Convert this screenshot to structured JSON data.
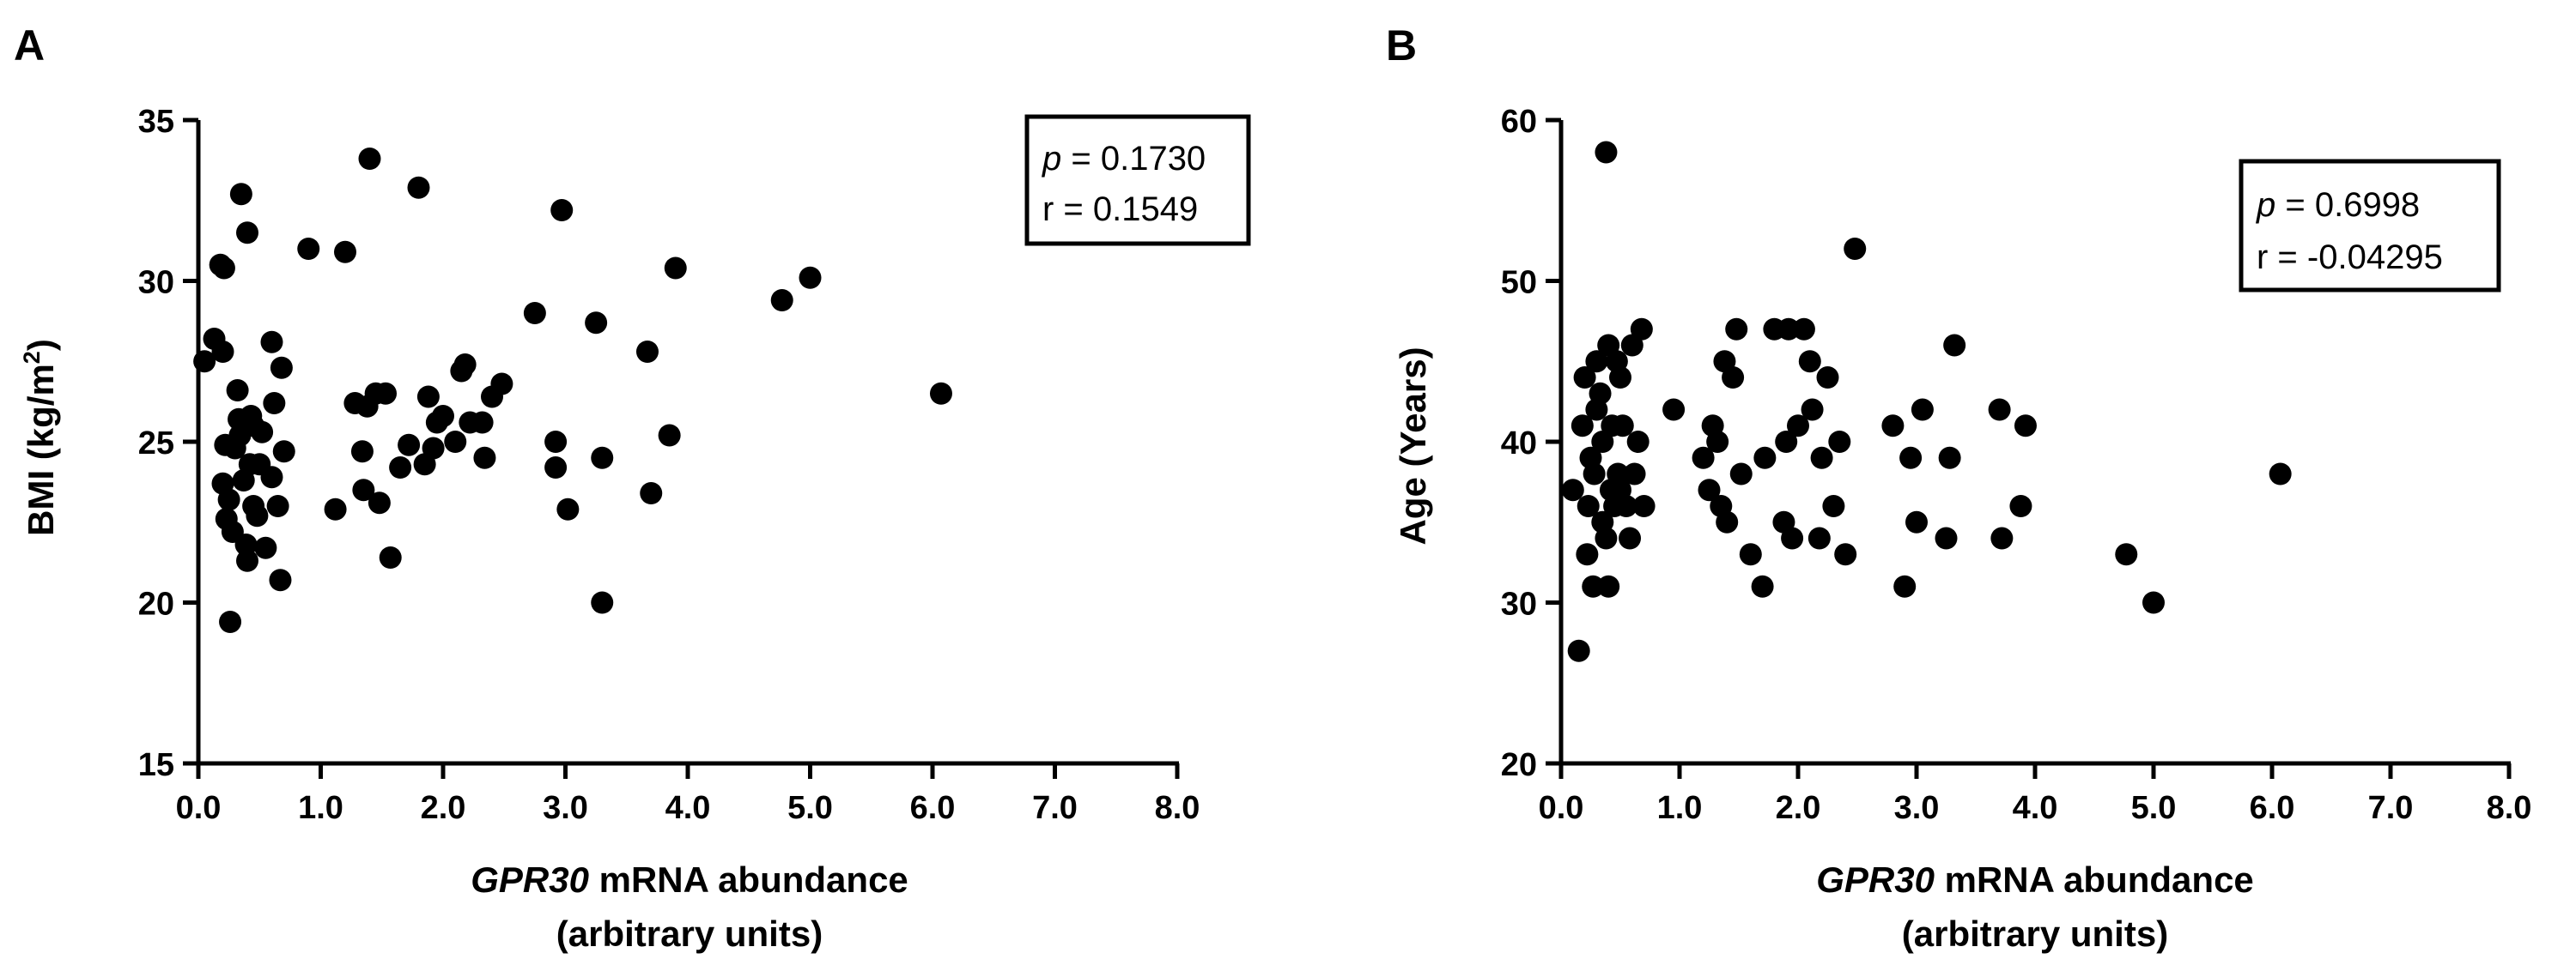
{
  "chart_data": [
    {
      "type": "scatter",
      "panel_label": "A",
      "ylabel": "BMI (kg/m",
      "ylabel_sup": "2",
      "ylabel_close": ")",
      "xlabel_gene": "GPR30",
      "xlabel_rest": " mRNA abundance",
      "xlabel_line2": "(arbitrary units)",
      "xlim": [
        0,
        8
      ],
      "ylim": [
        15,
        35
      ],
      "xticks": [
        0,
        1,
        2,
        3,
        4,
        5,
        6,
        7,
        8
      ],
      "xtick_labels": [
        "0.0",
        "1.0",
        "2.0",
        "3.0",
        "4.0",
        "5.0",
        "6.0",
        "7.0",
        "8.0"
      ],
      "yticks": [
        15,
        20,
        25,
        30,
        35
      ],
      "ytick_labels": [
        "15",
        "20",
        "25",
        "30",
        "35"
      ],
      "stats": {
        "p_symbol": "p",
        "p_value": " = 0.1730",
        "r_text": "r = 0.1549"
      },
      "points": [
        [
          0.05,
          27.5
        ],
        [
          0.13,
          28.2
        ],
        [
          0.18,
          30.5
        ],
        [
          0.21,
          30.4
        ],
        [
          0.2,
          27.8
        ],
        [
          0.22,
          24.9
        ],
        [
          0.2,
          23.7
        ],
        [
          0.25,
          23.2
        ],
        [
          0.23,
          22.6
        ],
        [
          0.26,
          19.4
        ],
        [
          0.28,
          22.2
        ],
        [
          0.3,
          24.8
        ],
        [
          0.32,
          26.6
        ],
        [
          0.33,
          25.7
        ],
        [
          0.34,
          25.2
        ],
        [
          0.35,
          32.7
        ],
        [
          0.37,
          23.8
        ],
        [
          0.39,
          21.8
        ],
        [
          0.4,
          31.5
        ],
        [
          0.4,
          21.3
        ],
        [
          0.42,
          24.3
        ],
        [
          0.43,
          25.8
        ],
        [
          0.45,
          25.5
        ],
        [
          0.45,
          23.0
        ],
        [
          0.48,
          22.7
        ],
        [
          0.5,
          24.3
        ],
        [
          0.52,
          25.3
        ],
        [
          0.55,
          21.7
        ],
        [
          0.6,
          28.1
        ],
        [
          0.6,
          23.9
        ],
        [
          0.62,
          26.2
        ],
        [
          0.65,
          23.0
        ],
        [
          0.67,
          20.7
        ],
        [
          0.68,
          27.3
        ],
        [
          0.7,
          24.7
        ],
        [
          0.9,
          31.0
        ],
        [
          1.12,
          22.9
        ],
        [
          1.2,
          30.9
        ],
        [
          1.28,
          26.2
        ],
        [
          1.34,
          24.7
        ],
        [
          1.35,
          23.5
        ],
        [
          1.38,
          26.1
        ],
        [
          1.4,
          33.8
        ],
        [
          1.45,
          26.5
        ],
        [
          1.48,
          23.1
        ],
        [
          1.53,
          26.5
        ],
        [
          1.57,
          21.4
        ],
        [
          1.65,
          24.2
        ],
        [
          1.72,
          24.9
        ],
        [
          1.8,
          32.9
        ],
        [
          1.85,
          24.3
        ],
        [
          1.88,
          26.4
        ],
        [
          1.92,
          24.8
        ],
        [
          1.95,
          25.6
        ],
        [
          2.0,
          25.8
        ],
        [
          2.1,
          25.0
        ],
        [
          2.15,
          27.2
        ],
        [
          2.18,
          27.4
        ],
        [
          2.22,
          25.6
        ],
        [
          2.32,
          25.6
        ],
        [
          2.34,
          24.5
        ],
        [
          2.4,
          26.4
        ],
        [
          2.48,
          26.8
        ],
        [
          2.75,
          29.0
        ],
        [
          2.92,
          25.0
        ],
        [
          2.92,
          24.2
        ],
        [
          2.97,
          32.2
        ],
        [
          3.02,
          22.9
        ],
        [
          3.25,
          28.7
        ],
        [
          3.3,
          24.5
        ],
        [
          3.3,
          20.0
        ],
        [
          3.67,
          27.8
        ],
        [
          3.7,
          23.4
        ],
        [
          3.85,
          25.2
        ],
        [
          3.9,
          30.4
        ],
        [
          4.77,
          29.4
        ],
        [
          5.0,
          30.1
        ],
        [
          6.07,
          26.5
        ]
      ]
    },
    {
      "type": "scatter",
      "panel_label": "B",
      "ylabel": "Age (Years)",
      "xlabel_gene": "GPR30",
      "xlabel_rest": " mRNA abundance",
      "xlabel_line2": "(arbitrary units)",
      "xlim": [
        0,
        8
      ],
      "ylim": [
        20,
        60
      ],
      "xticks": [
        0,
        1,
        2,
        3,
        4,
        5,
        6,
        7,
        8
      ],
      "xtick_labels": [
        "0.0",
        "1.0",
        "2.0",
        "3.0",
        "4.0",
        "5.0",
        "6.0",
        "7.0",
        "8.0"
      ],
      "yticks": [
        20,
        30,
        40,
        50,
        60
      ],
      "ytick_labels": [
        "20",
        "30",
        "40",
        "50",
        "60"
      ],
      "stats": {
        "p_symbol": "p",
        "p_value": " = 0.6998",
        "r_text": "r = -0.04295"
      },
      "points": [
        [
          0.1,
          37
        ],
        [
          0.15,
          27
        ],
        [
          0.18,
          41
        ],
        [
          0.2,
          44
        ],
        [
          0.22,
          33
        ],
        [
          0.23,
          36
        ],
        [
          0.25,
          39
        ],
        [
          0.27,
          31
        ],
        [
          0.28,
          38
        ],
        [
          0.3,
          42
        ],
        [
          0.3,
          45
        ],
        [
          0.33,
          43
        ],
        [
          0.35,
          40
        ],
        [
          0.35,
          35
        ],
        [
          0.38,
          34
        ],
        [
          0.38,
          58
        ],
        [
          0.4,
          46
        ],
        [
          0.4,
          31
        ],
        [
          0.42,
          37
        ],
        [
          0.43,
          41
        ],
        [
          0.45,
          36
        ],
        [
          0.47,
          45
        ],
        [
          0.48,
          38
        ],
        [
          0.5,
          44
        ],
        [
          0.5,
          37
        ],
        [
          0.52,
          41
        ],
        [
          0.55,
          36
        ],
        [
          0.58,
          34
        ],
        [
          0.6,
          46
        ],
        [
          0.62,
          38
        ],
        [
          0.65,
          40
        ],
        [
          0.68,
          47
        ],
        [
          0.7,
          36
        ],
        [
          0.95,
          42
        ],
        [
          1.2,
          39
        ],
        [
          1.25,
          37
        ],
        [
          1.28,
          41
        ],
        [
          1.32,
          40
        ],
        [
          1.35,
          36
        ],
        [
          1.38,
          45
        ],
        [
          1.4,
          35
        ],
        [
          1.45,
          44
        ],
        [
          1.48,
          47
        ],
        [
          1.52,
          38
        ],
        [
          1.6,
          33
        ],
        [
          1.7,
          31
        ],
        [
          1.72,
          39
        ],
        [
          1.8,
          47
        ],
        [
          1.88,
          35
        ],
        [
          1.9,
          40
        ],
        [
          1.92,
          47
        ],
        [
          1.95,
          34
        ],
        [
          2.0,
          41
        ],
        [
          2.05,
          47
        ],
        [
          2.1,
          45
        ],
        [
          2.12,
          42
        ],
        [
          2.18,
          34
        ],
        [
          2.2,
          39
        ],
        [
          2.25,
          44
        ],
        [
          2.3,
          36
        ],
        [
          2.35,
          40
        ],
        [
          2.4,
          33
        ],
        [
          2.48,
          52
        ],
        [
          2.8,
          41
        ],
        [
          2.9,
          31
        ],
        [
          2.95,
          39
        ],
        [
          3.0,
          35
        ],
        [
          3.05,
          42
        ],
        [
          3.25,
          34
        ],
        [
          3.28,
          39
        ],
        [
          3.32,
          46
        ],
        [
          3.7,
          42
        ],
        [
          3.72,
          34
        ],
        [
          3.88,
          36
        ],
        [
          3.92,
          41
        ],
        [
          4.77,
          33
        ],
        [
          5.0,
          30
        ],
        [
          6.07,
          38
        ]
      ]
    }
  ]
}
